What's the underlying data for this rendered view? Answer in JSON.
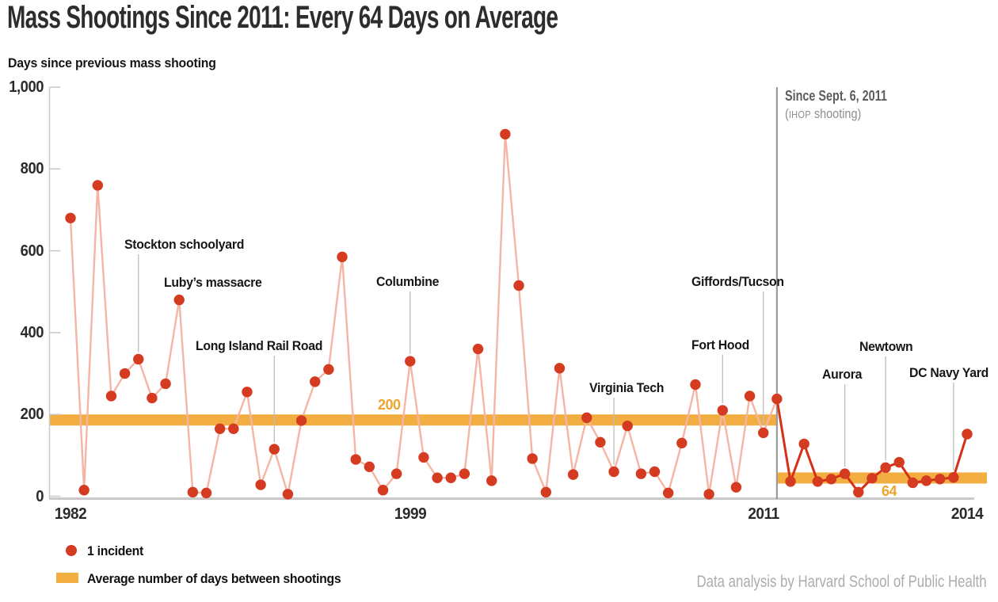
{
  "header": {
    "title": "Mass Shootings Since 2011: Every 64 Days on Average",
    "y_axis_title": "Days since previous mass shooting"
  },
  "chart_data": {
    "type": "line",
    "title": "Mass Shootings Since 2011: Every 64 Days on Average",
    "ylabel": "Days since previous mass shooting",
    "xlabel": "",
    "ylim": [
      0,
      1000
    ],
    "grid": false,
    "y_ticks": [
      {
        "value": 0,
        "label": "0"
      },
      {
        "value": 200,
        "label": "200"
      },
      {
        "value": 400,
        "label": "400"
      },
      {
        "value": 600,
        "label": "600"
      },
      {
        "value": 800,
        "label": "800"
      },
      {
        "value": 1000,
        "label": "1,000"
      }
    ],
    "x_ticks": [
      {
        "label": "1982",
        "index": 0
      },
      {
        "label": "1999",
        "index": 25
      },
      {
        "label": "2011",
        "index": 51
      },
      {
        "label": "2014",
        "index": 66
      }
    ],
    "values": [
      680,
      15,
      760,
      245,
      300,
      335,
      240,
      275,
      480,
      10,
      8,
      165,
      165,
      255,
      28,
      115,
      5,
      185,
      280,
      310,
      585,
      90,
      72,
      15,
      55,
      330,
      95,
      45,
      45,
      55,
      360,
      38,
      885,
      515,
      92,
      10,
      313,
      53,
      192,
      132,
      60,
      172,
      55,
      60,
      8,
      130,
      273,
      5,
      210,
      22,
      245,
      155,
      238,
      36,
      128,
      36,
      42,
      55,
      10,
      44,
      70,
      83,
      33,
      38,
      42,
      46,
      152
    ],
    "divider_index": 52,
    "averages": {
      "pre": {
        "value": 200,
        "label": "200"
      },
      "post": {
        "value": 64,
        "label": "64"
      }
    },
    "annotations": [
      {
        "label": "Stockton schoolyard",
        "index": 5
      },
      {
        "label": "Luby’s massacre",
        "index": 8
      },
      {
        "label": "Long Island Rail Road",
        "index": 15
      },
      {
        "label": "Columbine",
        "index": 25
      },
      {
        "label": "Virginia Tech",
        "index": 40
      },
      {
        "label": "Fort Hood",
        "index": 48
      },
      {
        "label": "Giffords/Tucson",
        "index": 51
      },
      {
        "label": "Aurora",
        "index": 57
      },
      {
        "label": "Newtown",
        "index": 60
      },
      {
        "label": "DC Navy Yard",
        "index": 65
      }
    ],
    "divider_note": {
      "line1": "Since Sept. 6, 2011",
      "line2_open": "(",
      "line2_caps": "IHOP",
      "line2_rest": " shooting)"
    },
    "colors": {
      "point": "#d43b21",
      "line_pre_2011": "#f5b5a5",
      "line_post_2011": "#d63118",
      "average_band": "#f3ae41",
      "band_label": "#eda42c",
      "divider": "#9b9b9b",
      "axis": "#c9c9c9",
      "leader": "#bdbdbd"
    }
  },
  "legend": [
    {
      "type": "dot",
      "label": "1 incident"
    },
    {
      "type": "band",
      "label": "Average number of days between shootings"
    }
  ],
  "credit": "Data analysis by Harvard School of Public Health"
}
